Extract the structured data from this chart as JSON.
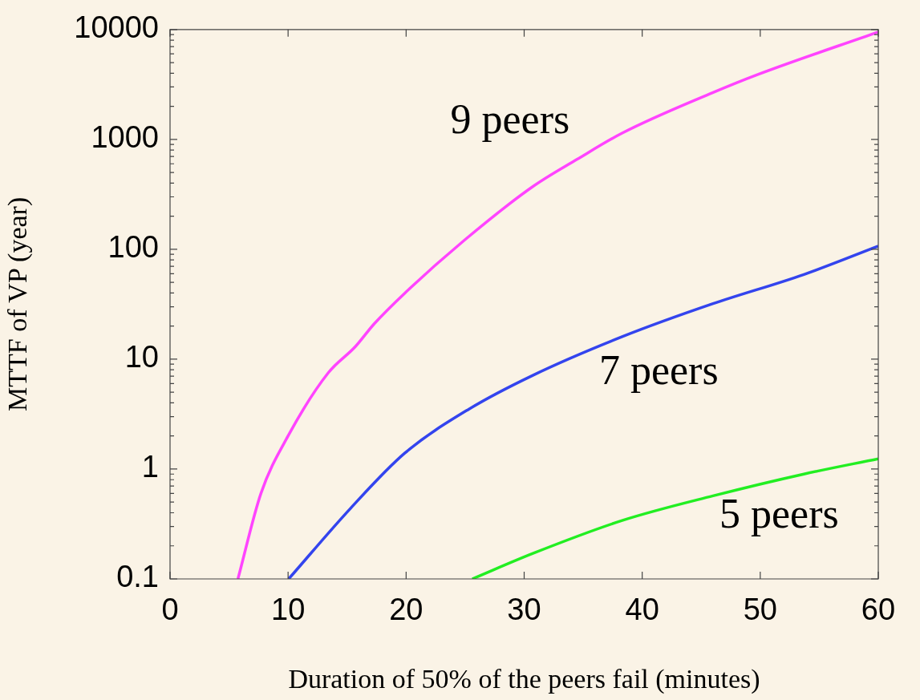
{
  "chart_data": {
    "type": "line",
    "xlabel": "Duration of 50% of the peers fail (minutes)",
    "ylabel": "MTTF of VP (year)",
    "xlim": [
      0,
      60
    ],
    "xticks": [
      0,
      10,
      20,
      30,
      40,
      50,
      60
    ],
    "ylim": [
      0.1,
      10000
    ],
    "yticks": [
      0.1,
      1,
      10,
      100,
      1000,
      10000
    ],
    "log": true,
    "grid": false,
    "legend": false,
    "marker": "none",
    "line_style": "solid",
    "series": [
      {
        "name": "9 peers",
        "color": "#ff44ff",
        "x": [
          5.75,
          7.7,
          10,
          13.4,
          15.7,
          17.3,
          19.9,
          24.9,
          30.7,
          34.5,
          38.3,
          46,
          49.8,
          60
        ],
        "values": [
          0.1,
          0.6,
          2,
          7.5,
          13,
          21,
          40,
          120,
          370,
          660,
          1140,
          2670,
          3900,
          9500
        ]
      },
      {
        "name": "7 peers",
        "color": "#3344ee",
        "x": [
          10.05,
          15.3,
          19.9,
          25.3,
          30.7,
          38.3,
          46,
          53.7,
          60
        ],
        "values": [
          0.1,
          0.44,
          1.4,
          3.5,
          7.1,
          16,
          32,
          59,
          107
        ]
      },
      {
        "name": "5 peers",
        "color": "#22ee22",
        "x": [
          25.6,
          30.7,
          38.3,
          46,
          53.7,
          60
        ],
        "values": [
          0.1,
          0.17,
          0.34,
          0.57,
          0.9,
          1.24
        ]
      }
    ]
  }
}
